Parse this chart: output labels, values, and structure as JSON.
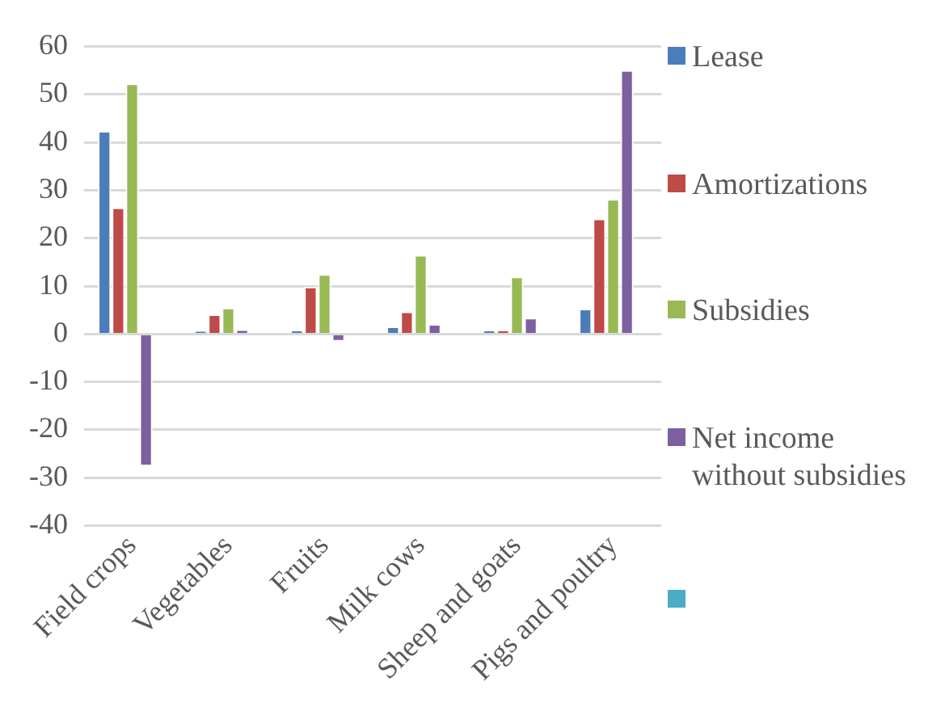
{
  "chart_data": {
    "type": "bar",
    "categories": [
      "Field crops",
      "Vegetables",
      "Fruits",
      "Milk cows",
      "Sheep and goats",
      "Pigs and poultry"
    ],
    "series": [
      {
        "name": "Lease",
        "color": "#4a7ebb",
        "values": [
          42.4,
          0.7,
          0.9,
          1.6,
          0.9,
          5.3
        ]
      },
      {
        "name": "Amortizations",
        "color": "#be4b48",
        "values": [
          26.4,
          4.1,
          9.9,
          4.7,
          0.9,
          24.1
        ]
      },
      {
        "name": "Subsidies",
        "color": "#98b954",
        "values": [
          52.3,
          5.5,
          12.5,
          16.5,
          12.0,
          28.2
        ]
      },
      {
        "name": "Net income without subsidies",
        "color": "#7d60a0",
        "values": [
          -27.6,
          1.0,
          -1.6,
          2.1,
          3.4,
          55.1
        ]
      },
      {
        "color": "#4bacc6",
        "values": [
          null,
          null,
          null,
          null,
          null,
          null
        ]
      }
    ],
    "ylim": [
      -40,
      60
    ],
    "yticks": [
      -40,
      -30,
      -20,
      -10,
      0,
      10,
      20,
      30,
      40,
      50,
      60
    ],
    "grid": "y",
    "legend": "right"
  }
}
